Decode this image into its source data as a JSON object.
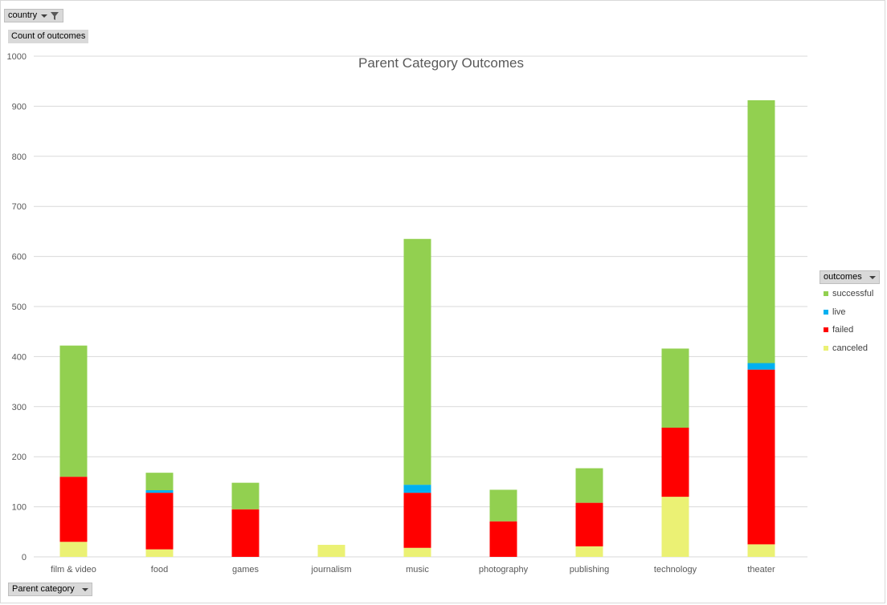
{
  "filters": {
    "country_label": "country",
    "value_label": "Count of outcomes",
    "axis_field_label": "Parent category",
    "legend_field_label": "outcomes"
  },
  "chart_data": {
    "type": "bar",
    "stacked": true,
    "title": "Parent Category Outcomes",
    "xlabel": "",
    "ylabel": "",
    "ylim": [
      0,
      1000
    ],
    "yticks": [
      0,
      100,
      200,
      300,
      400,
      500,
      600,
      700,
      800,
      900,
      1000
    ],
    "grid": true,
    "legend_position": "right",
    "categories": [
      "film & video",
      "food",
      "games",
      "journalism",
      "music",
      "photography",
      "publishing",
      "technology",
      "theater"
    ],
    "series": [
      {
        "name": "canceled",
        "color": "#ebf174",
        "values": [
          30,
          15,
          0,
          24,
          18,
          0,
          21,
          120,
          25
        ]
      },
      {
        "name": "failed",
        "color": "#ff0000",
        "values": [
          130,
          113,
          95,
          0,
          110,
          71,
          87,
          138,
          349
        ]
      },
      {
        "name": "live",
        "color": "#00b0f0",
        "values": [
          0,
          5,
          0,
          0,
          16,
          0,
          0,
          0,
          13
        ]
      },
      {
        "name": "successful",
        "color": "#92d050",
        "values": [
          262,
          35,
          53,
          0,
          491,
          63,
          69,
          158,
          525
        ]
      }
    ],
    "legend_order": [
      "successful",
      "live",
      "failed",
      "canceled"
    ]
  }
}
